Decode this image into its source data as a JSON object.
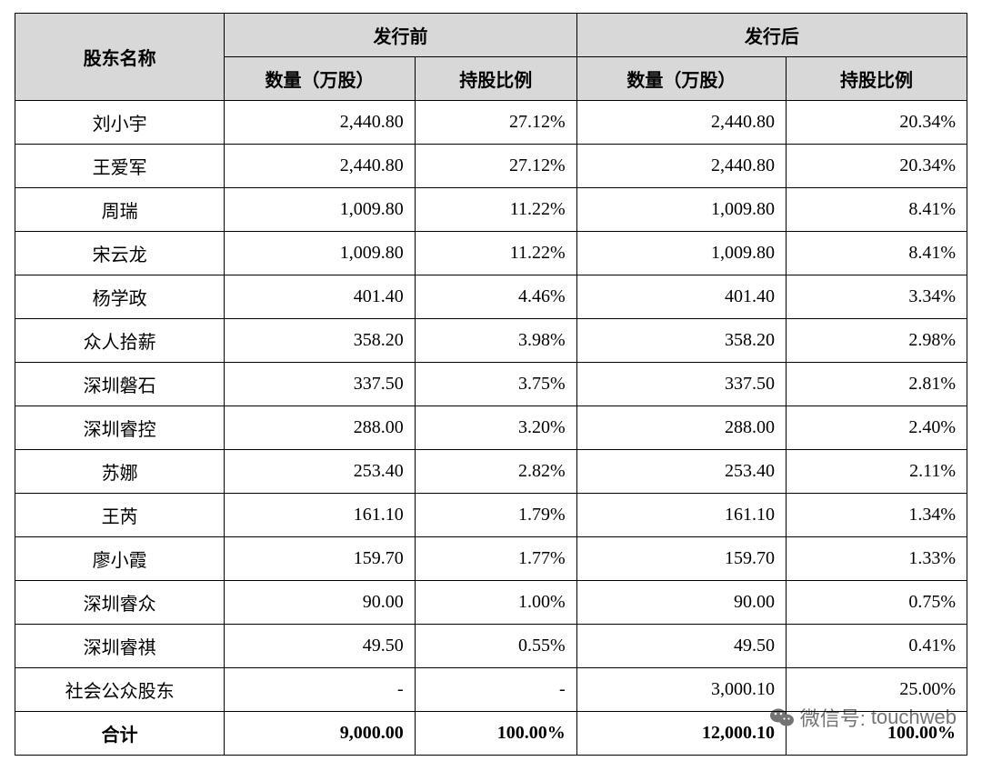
{
  "table": {
    "columns": {
      "name": "股东名称",
      "before": "发行前",
      "after": "发行后",
      "qty": "数量（万股）",
      "pct": "持股比例"
    },
    "header_bg": "#d8d8d8",
    "border_color": "#000000",
    "font_size": 20,
    "rows": [
      {
        "name": "刘小宇",
        "before_qty": "2,440.80",
        "before_pct": "27.12%",
        "after_qty": "2,440.80",
        "after_pct": "20.34%"
      },
      {
        "name": "王爱军",
        "before_qty": "2,440.80",
        "before_pct": "27.12%",
        "after_qty": "2,440.80",
        "after_pct": "20.34%"
      },
      {
        "name": "周瑞",
        "before_qty": "1,009.80",
        "before_pct": "11.22%",
        "after_qty": "1,009.80",
        "after_pct": "8.41%"
      },
      {
        "name": "宋云龙",
        "before_qty": "1,009.80",
        "before_pct": "11.22%",
        "after_qty": "1,009.80",
        "after_pct": "8.41%"
      },
      {
        "name": "杨学政",
        "before_qty": "401.40",
        "before_pct": "4.46%",
        "after_qty": "401.40",
        "after_pct": "3.34%"
      },
      {
        "name": "众人拾薪",
        "before_qty": "358.20",
        "before_pct": "3.98%",
        "after_qty": "358.20",
        "after_pct": "2.98%"
      },
      {
        "name": "深圳磐石",
        "before_qty": "337.50",
        "before_pct": "3.75%",
        "after_qty": "337.50",
        "after_pct": "2.81%"
      },
      {
        "name": "深圳睿控",
        "before_qty": "288.00",
        "before_pct": "3.20%",
        "after_qty": "288.00",
        "after_pct": "2.40%"
      },
      {
        "name": "苏娜",
        "before_qty": "253.40",
        "before_pct": "2.82%",
        "after_qty": "253.40",
        "after_pct": "2.11%"
      },
      {
        "name": "王芮",
        "before_qty": "161.10",
        "before_pct": "1.79%",
        "after_qty": "161.10",
        "after_pct": "1.34%"
      },
      {
        "name": "廖小霞",
        "before_qty": "159.70",
        "before_pct": "1.77%",
        "after_qty": "159.70",
        "after_pct": "1.33%"
      },
      {
        "name": "深圳睿众",
        "before_qty": "90.00",
        "before_pct": "1.00%",
        "after_qty": "90.00",
        "after_pct": "0.75%"
      },
      {
        "name": "深圳睿祺",
        "before_qty": "49.50",
        "before_pct": "0.55%",
        "after_qty": "49.50",
        "after_pct": "0.41%"
      },
      {
        "name": "社会公众股东",
        "before_qty": "-",
        "before_pct": "-",
        "after_qty": "3,000.10",
        "after_pct": "25.00%"
      }
    ],
    "total": {
      "name": "合计",
      "before_qty": "9,000.00",
      "before_pct": "100.00%",
      "after_qty": "12,000.10",
      "after_pct": "100.00%"
    }
  },
  "watermark": {
    "prefix": "微信号:",
    "handle": "touchweb",
    "color": "rgba(0,0,0,0.55)",
    "font_size": 22
  }
}
